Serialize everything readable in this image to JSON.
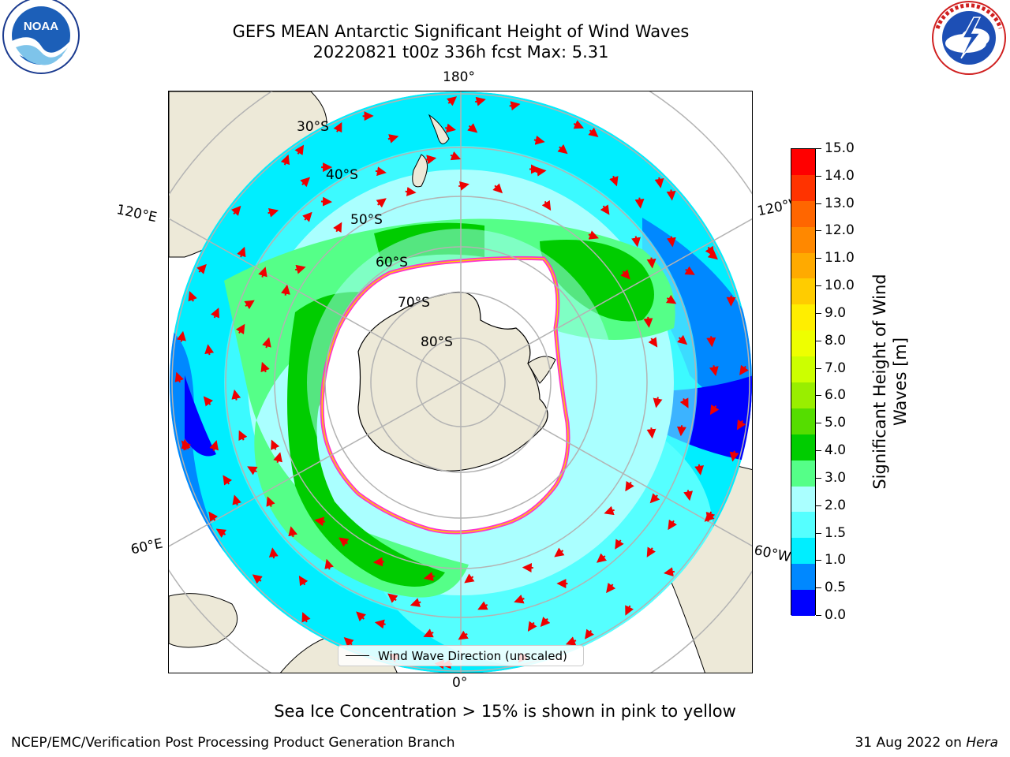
{
  "title": {
    "line1": "GEFS MEAN Antarctic Significant Height of Wind Waves",
    "line2": "20220821 t00z 336h fcst   Max: 5.31"
  },
  "logos": {
    "left": {
      "name": "NOAA",
      "ring_text": "NATIONAL OCEANIC AND ATMOSPHERIC ADMINISTRATION · U.S. DEPARTMENT OF COMMERCE"
    },
    "right": {
      "name": "NATIONAL WEATHER SERVICE"
    }
  },
  "map": {
    "projection": "south polar stereographic",
    "longitude_labels": {
      "top": "180°",
      "bottom": "0°",
      "left_upper": "120°E",
      "left_lower": "60°E",
      "right_upper": "120°W",
      "right_lower": "60°W"
    },
    "latitude_labels": [
      "30°S",
      "40°S",
      "50°S",
      "60°S",
      "70°S",
      "80°S"
    ],
    "legend_label": "Wind Wave Direction (unscaled)"
  },
  "colorbar": {
    "title_line1": "Significant Height of Wind",
    "title_line2": "Waves [m]",
    "ticks": [
      "15.0",
      "14.0",
      "13.0",
      "12.0",
      "11.0",
      "10.0",
      "9.0",
      "8.0",
      "7.0",
      "6.0",
      "5.0",
      "4.0",
      "3.0",
      "2.0",
      "1.5",
      "1.0",
      "0.5",
      "0.0"
    ],
    "colors_top_to_bottom": [
      "#ff0000",
      "#ff3300",
      "#ff6600",
      "#ff8800",
      "#ffaa00",
      "#ffcc00",
      "#ffee00",
      "#eeff00",
      "#ccff00",
      "#99ee00",
      "#55dd00",
      "#00cc00",
      "#55ff88",
      "#aaffff",
      "#55ffff",
      "#00eeff",
      "#0088ff",
      "#0000ff"
    ]
  },
  "colors": {
    "land": "#ede9d8",
    "ice": "#ffffff",
    "ice_edge": "#ff33cc",
    "arrow": "#ee0000",
    "gridline": "#b3b3b3"
  },
  "note": "Sea Ice Concentration > 15% is shown in pink to yellow",
  "footer": {
    "left": "NCEP/EMC/Verification Post Processing Product Generation Branch",
    "right_date": "31 Aug 2022 on",
    "right_host": "Hera"
  }
}
